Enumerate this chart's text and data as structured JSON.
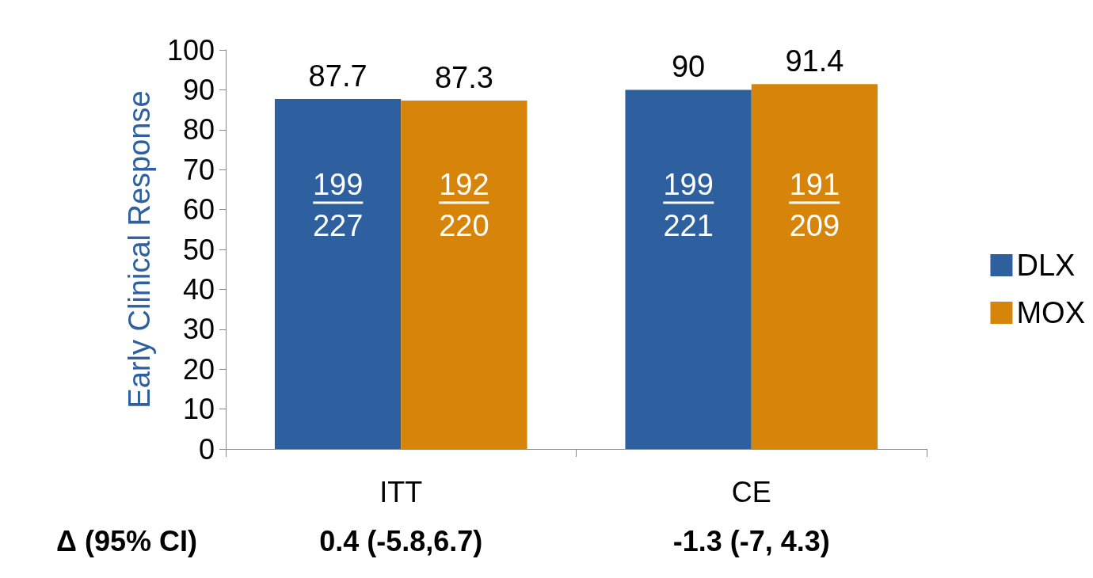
{
  "chart_data": {
    "type": "bar",
    "ylabel": "Early Clinical Response",
    "categories": [
      "ITT",
      "CE"
    ],
    "series": [
      {
        "name": "DLX",
        "color": "#2e5f9e",
        "values": [
          87.7,
          90
        ]
      },
      {
        "name": "MOX",
        "color": "#d6850a",
        "values": [
          87.3,
          91.4
        ]
      }
    ],
    "ylim": [
      0,
      100
    ],
    "yticks": [
      0,
      10,
      20,
      30,
      40,
      50,
      60,
      70,
      80,
      90,
      100
    ],
    "grid": false,
    "legend": "right",
    "data_labels": true,
    "annotations": [
      {
        "text": "199",
        "x": "ITT",
        "y": 66
      },
      {
        "text": "227",
        "x": "ITT",
        "y": 56
      },
      {
        "text": "192",
        "x": "ITT",
        "y": 66
      },
      {
        "text": "220",
        "x": "ITT",
        "y": 56
      },
      {
        "text": "199",
        "x": "CE",
        "y": 66
      },
      {
        "text": "221",
        "x": "CE",
        "y": 56
      },
      {
        "text": "191",
        "x": "CE",
        "y": 66
      },
      {
        "text": "209",
        "x": "CE",
        "y": 56
      },
      "Δ (95% CI)",
      "0.4 (-5.8,6.7)",
      "-1.3 (-7, 4.3)"
    ]
  }
}
